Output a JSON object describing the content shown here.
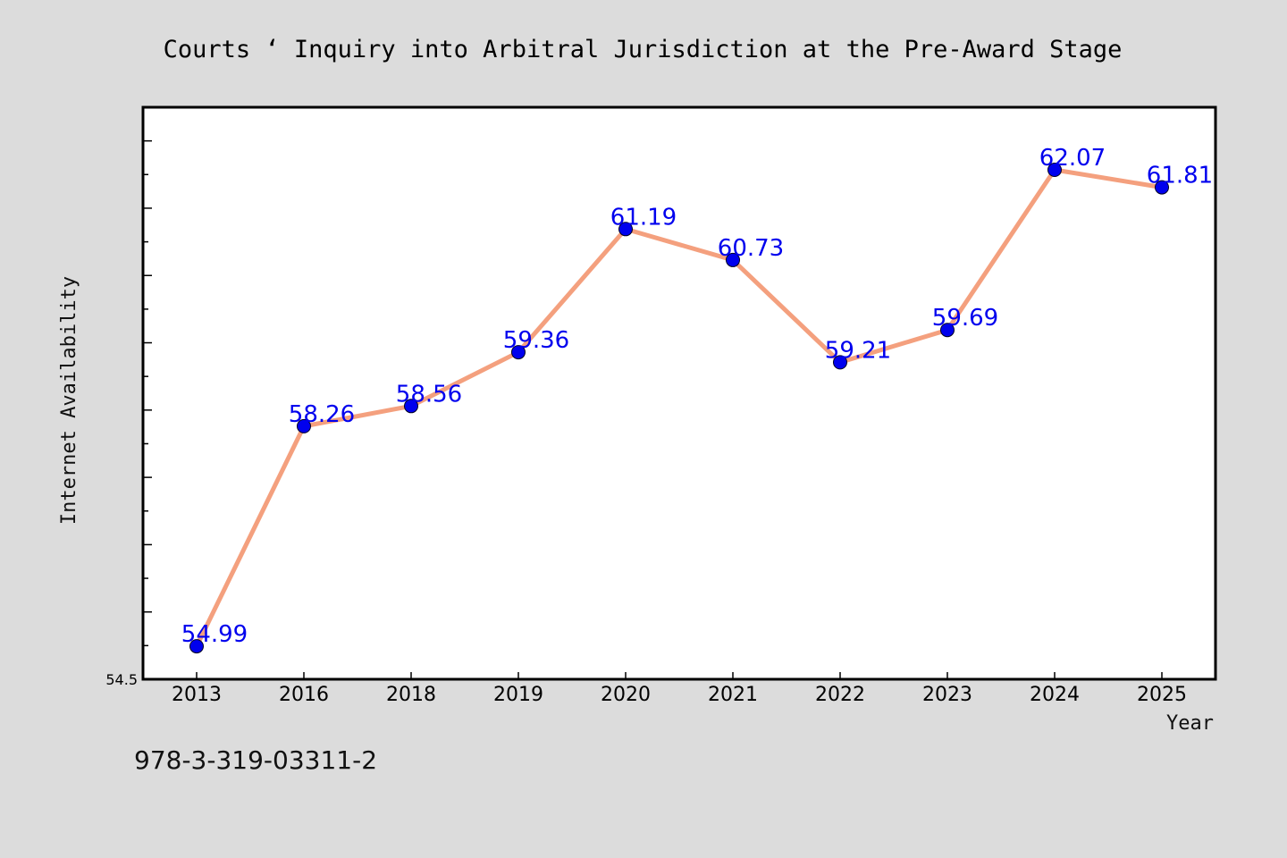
{
  "chart_data": {
    "type": "line",
    "title": "Courts ‘ Inquiry into Arbitral Jurisdiction at the Pre-Award Stage",
    "xlabel": "Year",
    "ylabel": "Internet Availability",
    "categories": [
      "2013",
      "2016",
      "2018",
      "2019",
      "2020",
      "2021",
      "2022",
      "2023",
      "2024",
      "2025"
    ],
    "values": [
      54.99,
      58.26,
      58.56,
      59.36,
      61.19,
      60.73,
      59.21,
      59.69,
      62.07,
      61.81
    ],
    "data_labels": [
      "54.99",
      "58.26",
      "58.56",
      "59.36",
      "61.19",
      "60.73",
      "59.21",
      "59.69",
      "62.07",
      "61.81"
    ],
    "ylim": [
      54.5,
      63.0
    ],
    "yticks_labeled": [
      "54.5"
    ],
    "grid": false,
    "line_color": "#f4a07e",
    "marker_color": "#0000ee",
    "label_color": "#0000ee",
    "plot_background": "#ffffff",
    "figure_background": "#dcdcdc"
  },
  "footer": {
    "isbn": "978-3-319-03311-2"
  }
}
